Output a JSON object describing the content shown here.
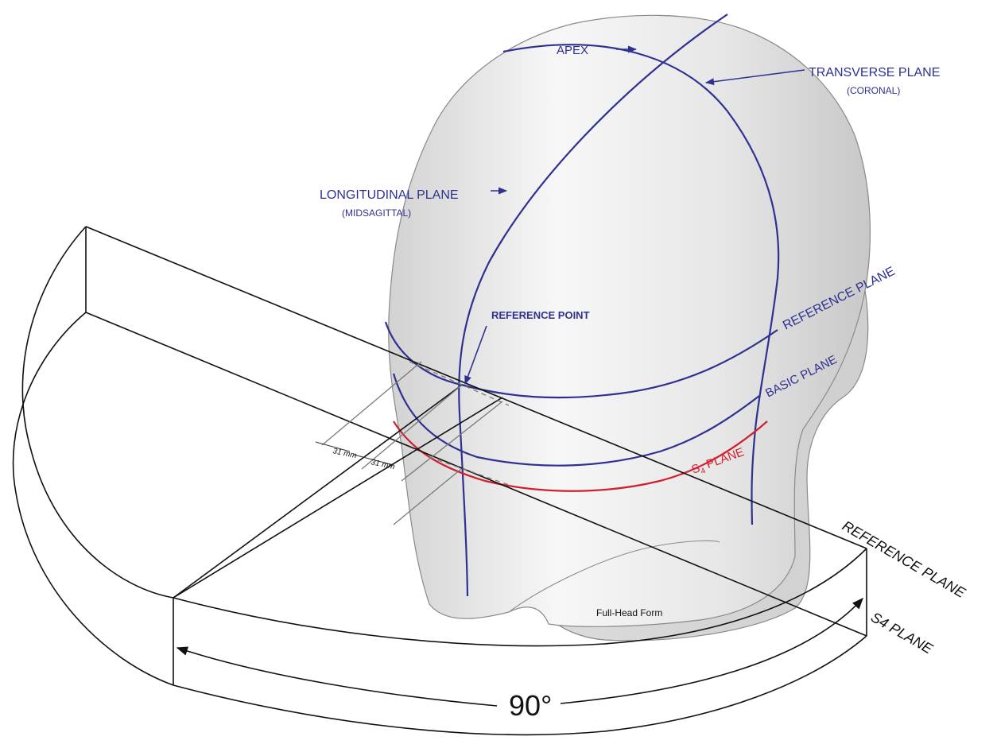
{
  "labels": {
    "apex": "APEX",
    "transverse_plane": "TRANSVERSE PLANE",
    "transverse_plane_sub": "(CORONAL)",
    "longitudinal_plane": "LONGITUDINAL PLANE",
    "longitudinal_plane_sub": "(MIDSAGITTAL)",
    "reference_point": "REFERENCE POINT",
    "reference_plane_head": "REFERENCE PLANE",
    "basic_plane": "BASIC PLANE",
    "s4_plane_head": "PLANE",
    "s4_prefix": "S",
    "s4_subscript": "4",
    "dimension_1": "31",
    "dimension_2": "31",
    "dimension_unit": "mm",
    "full_head_form": "Full-Head Form",
    "reference_plane_side": "REFERENCE PLANE",
    "s4_plane_side": "S4 PLANE",
    "angle": "90°"
  },
  "colors": {
    "blue": "#2e3192",
    "red": "#d11f2e",
    "black": "#111111",
    "head_fill": "#e4e4e4"
  }
}
